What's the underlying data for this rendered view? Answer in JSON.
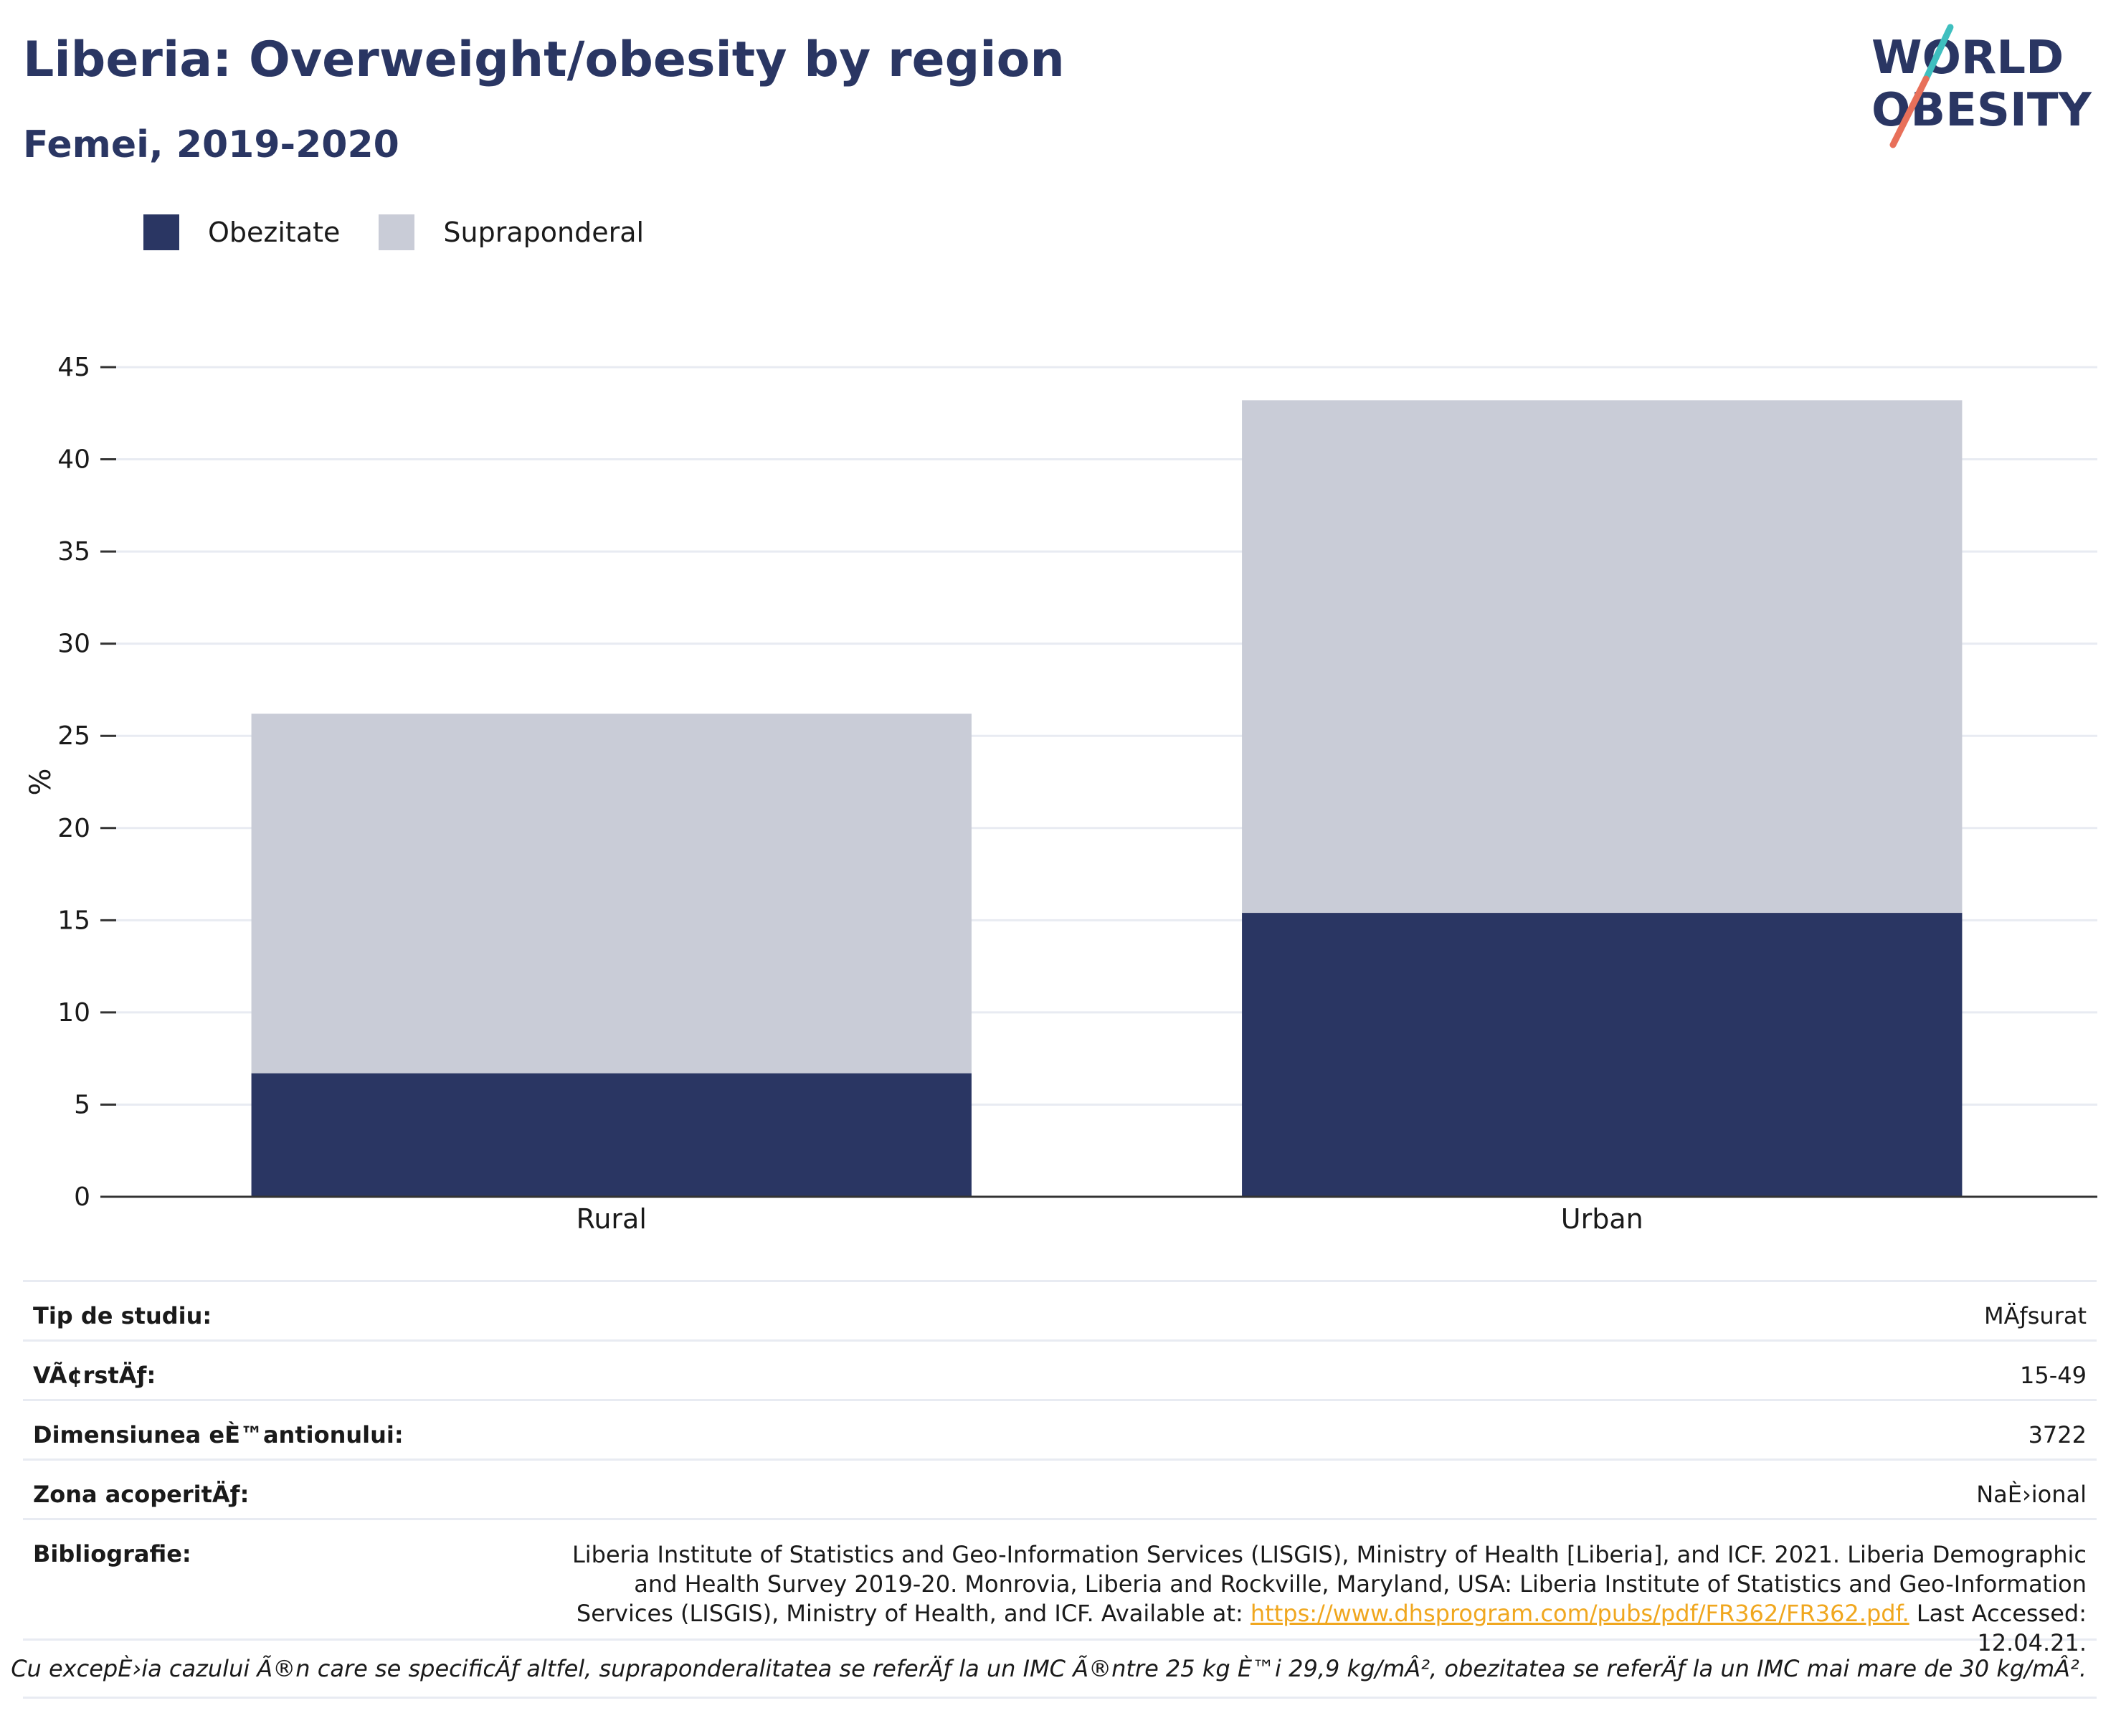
{
  "header": {
    "title": "Liberia: Overweight/obesity by region",
    "subtitle": "Femei, 2019-2020",
    "logo_text_line1": "WORLD",
    "logo_text_line2": "OBESITY"
  },
  "colors": {
    "obesity": "#2a3663",
    "overweight": "#c9ccd7",
    "title": "#2a3663",
    "gridline": "#e8ebf2",
    "axis": "#333333",
    "link": "#f0a71f",
    "logo_teal": "#3fbfbf",
    "logo_coral": "#e8705a"
  },
  "legend": [
    {
      "label": "Obezitate",
      "color": "#2a3663"
    },
    {
      "label": "Supraponderal",
      "color": "#c9ccd7"
    }
  ],
  "chart_data": {
    "type": "bar",
    "stacked": true,
    "categories": [
      "Rural",
      "Urban"
    ],
    "series": [
      {
        "name": "Obezitate",
        "values": [
          6.7,
          15.4
        ],
        "color": "#2a3663"
      },
      {
        "name": "Supraponderal",
        "values": [
          19.5,
          27.8
        ],
        "color": "#c9ccd7"
      }
    ],
    "title": "Liberia: Overweight/obesity by region",
    "subtitle": "Femei, 2019-2020",
    "xlabel": "",
    "ylabel": "%",
    "ylim": [
      0,
      45
    ],
    "yticks": [
      0,
      5,
      10,
      15,
      20,
      25,
      30,
      35,
      40,
      45
    ],
    "grid": true,
    "legend_position": "top-left"
  },
  "info_table": {
    "rows": [
      {
        "key": "Tip de studiu:",
        "value": "MÄƒsurat"
      },
      {
        "key": "VÃ¢rstÄƒ:",
        "value": "15-49"
      },
      {
        "key": "Dimensiunea eÈ™antionului:",
        "value": "3722"
      },
      {
        "key": "Zona acoperitÄƒ:",
        "value": "NaÈ›ional"
      }
    ],
    "bibliography_label": "Bibliografie:",
    "bibliography_text": "Liberia Institute of Statistics and Geo-Information Services (LISGIS), Ministry of Health [Liberia], and ICF. 2021. Liberia Demographic and Health Survey 2019-20. Monrovia, Liberia and Rockville, Maryland, USA: Liberia Institute of Statistics and Geo-Information Services (LISGIS), Ministry of Health, and ICF. Available at:",
    "bibliography_link": "https://www.dhsprogram.com/pubs/pdf/FR362/FR362.pdf.",
    "bibliography_suffix": "Last Accessed: 12.04.21.",
    "footnote": "Cu excepÈ›ia cazului Ã®n care se specificÄƒ altfel, supraponderalitatea se referÄƒ la un IMC Ã®ntre 25 kg È™i 29,9 kg/mÂ², obezitatea se referÄƒ la un IMC mai mare de 30 kg/mÂ²."
  }
}
